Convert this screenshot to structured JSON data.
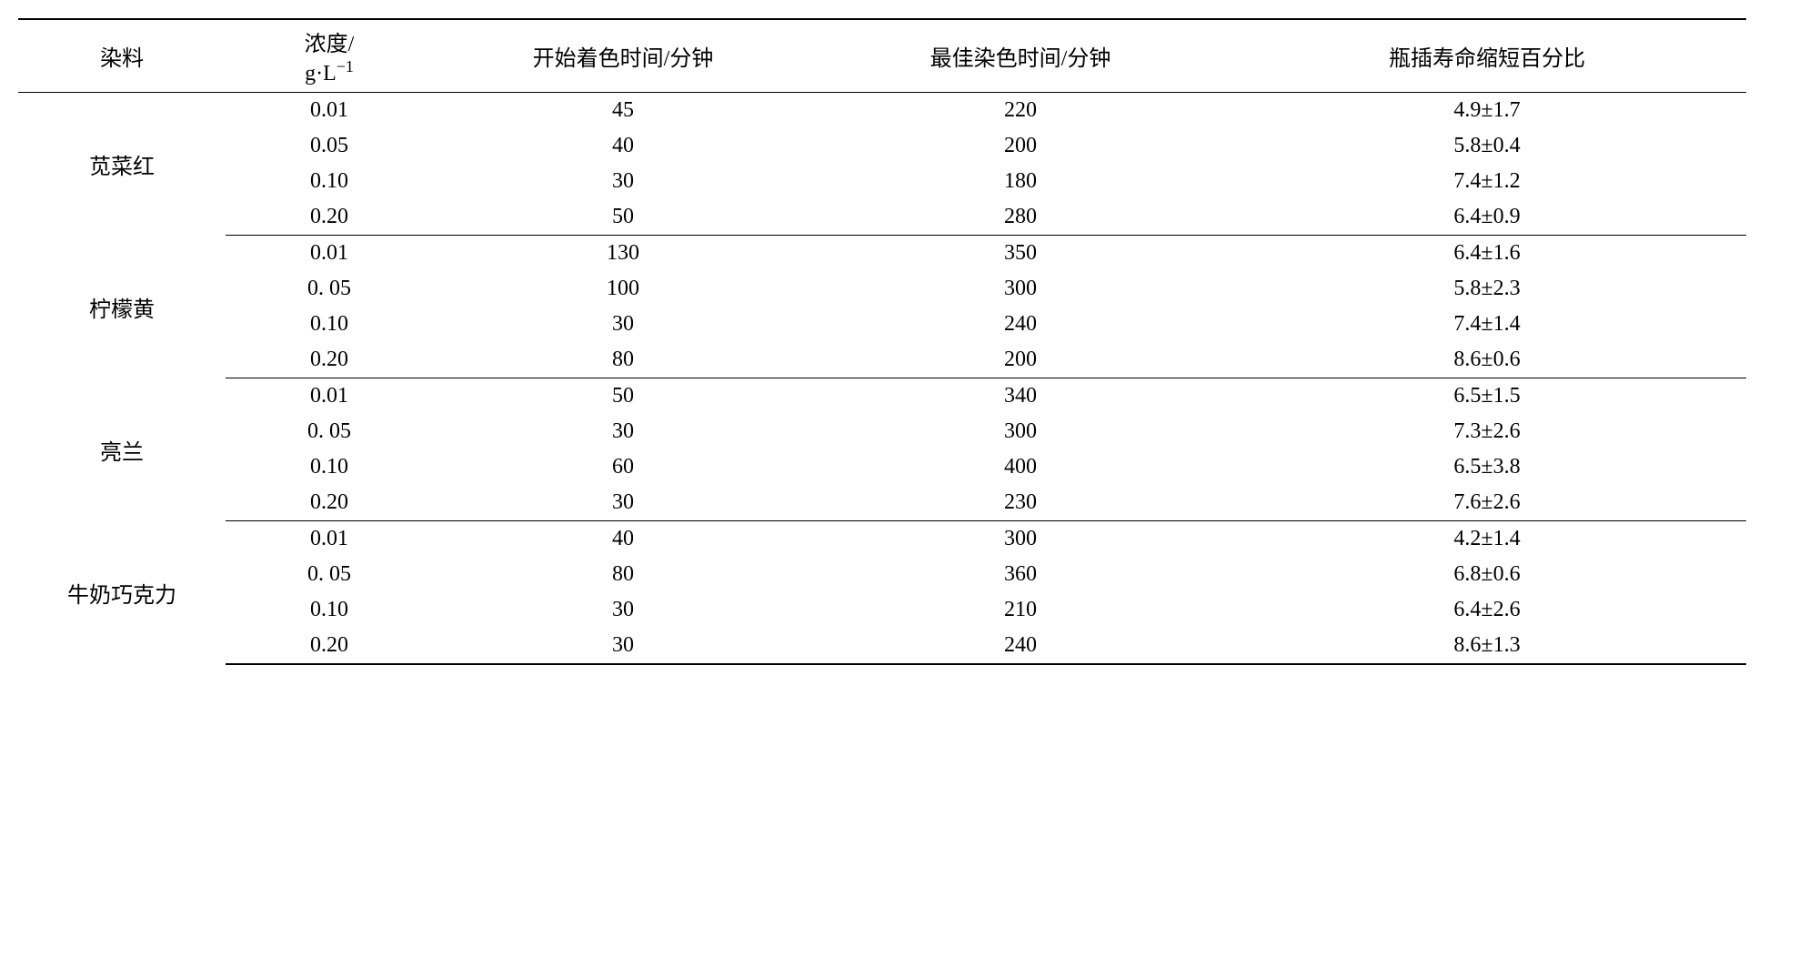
{
  "table": {
    "columns": {
      "dye": "染料",
      "concentration_label": "浓度/",
      "concentration_unit_prefix": "g·",
      "concentration_unit_base": "L",
      "concentration_unit_exp": "−1",
      "start_time": "开始着色时间/分钟",
      "best_time": "最佳染色时间/分钟",
      "vase_life": "瓶插寿命缩短百分比"
    },
    "header_fontsize_pt": 18,
    "body_fontsize_pt": 18,
    "text_color": "#000000",
    "background_color": "#ffffff",
    "border_color": "#000000",
    "groups": [
      {
        "dye": "苋菜红",
        "rows": [
          {
            "conc": "0.01",
            "start": "45",
            "best": "220",
            "life": "4.9±1.7"
          },
          {
            "conc": "0.05",
            "start": "40",
            "best": "200",
            "life": "5.8±0.4"
          },
          {
            "conc": "0.10",
            "start": "30",
            "best": "180",
            "life": "7.4±1.2"
          },
          {
            "conc": "0.20",
            "start": "50",
            "best": "280",
            "life": "6.4±0.9"
          }
        ]
      },
      {
        "dye": "柠檬黄",
        "rows": [
          {
            "conc": "0.01",
            "start": "130",
            "best": "350",
            "life": "6.4±1.6"
          },
          {
            "conc": "0. 05",
            "start": "100",
            "best": "300",
            "life": "5.8±2.3"
          },
          {
            "conc": "0.10",
            "start": "30",
            "best": "240",
            "life": "7.4±1.4"
          },
          {
            "conc": "0.20",
            "start": "80",
            "best": "200",
            "life": "8.6±0.6"
          }
        ]
      },
      {
        "dye": "亮兰",
        "rows": [
          {
            "conc": "0.01",
            "start": "50",
            "best": "340",
            "life": "6.5±1.5"
          },
          {
            "conc": "0. 05",
            "start": "30",
            "best": "300",
            "life": "7.3±2.6"
          },
          {
            "conc": "0.10",
            "start": "60",
            "best": "400",
            "life": "6.5±3.8"
          },
          {
            "conc": "0.20",
            "start": "30",
            "best": "230",
            "life": "7.6±2.6"
          }
        ]
      },
      {
        "dye": "牛奶巧克力",
        "rows": [
          {
            "conc": "0.01",
            "start": "40",
            "best": "300",
            "life": "4.2±1.4"
          },
          {
            "conc": "0. 05",
            "start": "80",
            "best": "360",
            "life": "6.8±0.6"
          },
          {
            "conc": "0.10",
            "start": "30",
            "best": "210",
            "life": "6.4±2.6"
          },
          {
            "conc": "0.20",
            "start": "30",
            "best": "240",
            "life": "8.6±1.3"
          }
        ]
      }
    ]
  }
}
